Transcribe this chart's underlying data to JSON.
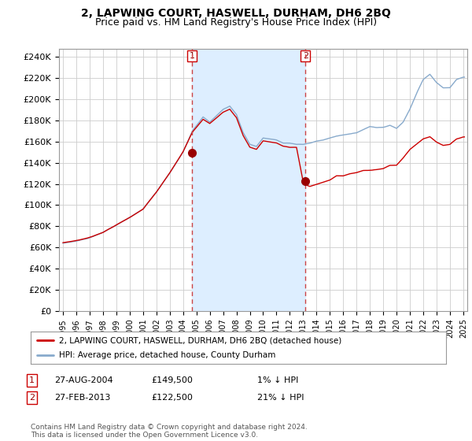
{
  "title": "2, LAPWING COURT, HASWELL, DURHAM, DH6 2BQ",
  "subtitle": "Price paid vs. HM Land Registry's House Price Index (HPI)",
  "title_fontsize": 10,
  "subtitle_fontsize": 9,
  "ylabel_ticks": [
    "£0",
    "£20K",
    "£40K",
    "£60K",
    "£80K",
    "£100K",
    "£120K",
    "£140K",
    "£160K",
    "£180K",
    "£200K",
    "£220K",
    "£240K"
  ],
  "ytick_values": [
    0,
    20000,
    40000,
    60000,
    80000,
    100000,
    120000,
    140000,
    160000,
    180000,
    200000,
    220000,
    240000
  ],
  "ylim": [
    0,
    248000
  ],
  "xlim_start": 1994.7,
  "xlim_end": 2025.3,
  "xtick_labels": [
    "1995",
    "1996",
    "1997",
    "1998",
    "1999",
    "2000",
    "2001",
    "2002",
    "2003",
    "2004",
    "2005",
    "2006",
    "2007",
    "2008",
    "2009",
    "2010",
    "2011",
    "2012",
    "2013",
    "2014",
    "2015",
    "2016",
    "2017",
    "2018",
    "2019",
    "2020",
    "2021",
    "2022",
    "2023",
    "2024",
    "2025"
  ],
  "line1_color": "#cc0000",
  "line2_color": "#88aacc",
  "marker_color": "#990000",
  "sale1_x": 2004.66,
  "sale1_y": 149500,
  "sale2_x": 2013.17,
  "sale2_y": 122500,
  "vline1_x": 2004.66,
  "vline2_x": 2013.17,
  "shade_color": "#ddeeff",
  "legend_label1": "2, LAPWING COURT, HASWELL, DURHAM, DH6 2BQ (detached house)",
  "legend_label2": "HPI: Average price, detached house, County Durham",
  "table_rows": [
    {
      "num": "1",
      "date": "27-AUG-2004",
      "price": "£149,500",
      "hpi": "1% ↓ HPI"
    },
    {
      "num": "2",
      "date": "27-FEB-2013",
      "price": "£122,500",
      "hpi": "21% ↓ HPI"
    }
  ],
  "footer": "Contains HM Land Registry data © Crown copyright and database right 2024.\nThis data is licensed under the Open Government Licence v3.0.",
  "bg_color": "#ffffff",
  "grid_color": "#cccccc"
}
